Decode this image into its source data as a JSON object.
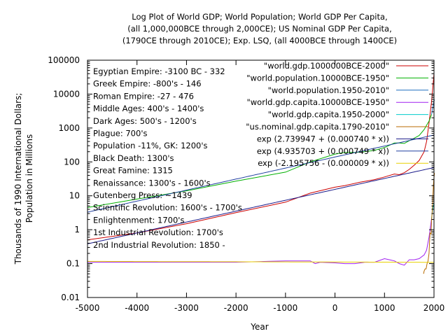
{
  "chart_data": {
    "type": "line",
    "title_lines": [
      "Log Plot of World GDP; World Population; World GDP Per Capita,",
      "(all 1,000,000BCE through 2,000CE); US Nominal GDP Per Capita,",
      "(1790CE through 2010CE); Exp. LSQ, (all 4000BCE through 1400CE)"
    ],
    "xlabel": "Year",
    "ylabel_lines": [
      "Thousands of 1990 International Dollars;",
      "Population in Millions"
    ],
    "xlim": [
      -5000,
      2000
    ],
    "ylim": [
      0.01,
      100000
    ],
    "yscale": "log",
    "xticks": [
      -5000,
      -4000,
      -3000,
      -2000,
      -1000,
      0,
      1000,
      2000
    ],
    "yticks": [
      {
        "value": 0.01,
        "label": "0.01"
      },
      {
        "value": 0.1,
        "label": "0.1"
      },
      {
        "value": 1,
        "label": "1"
      },
      {
        "value": 10,
        "label": "10"
      },
      {
        "value": 100,
        "label": "100"
      },
      {
        "value": 1000,
        "label": "1000"
      },
      {
        "value": 10000,
        "label": "10000"
      },
      {
        "value": 100000,
        "label": "100000"
      }
    ],
    "grid": false,
    "legend_position": "top-right",
    "annotations": [
      "Egyptian Empire: -3100 BC - 332",
      "Greek Empire: -800's - 146",
      "Roman Empire: -27 - 476",
      "Middle Ages: 400's - 1400's",
      "Dark Ages: 500's - 1200's",
      "Plague: 700's",
      "Population -11%, GK: 1200's",
      "Black Death: 1300's",
      "Great Famine: 1315",
      "Renaissance: 1300's - 1600's",
      "Gutenberg Press: ~1439",
      "Scientific Revolution: 1600's - 1700's",
      "Enlightenment: 1700's",
      "1st Industrial Revolution: 1700's",
      "2nd Industrial Revolution: 1850 -"
    ],
    "series": [
      {
        "name": "\"world.gdp.1000000BCE-2000\"",
        "color": "#cc0000",
        "x": [
          -5000,
          -4000,
          -3000,
          -2000,
          -1000,
          -500,
          0,
          200,
          500,
          800,
          1000,
          1200,
          1300,
          1400,
          1500,
          1600,
          1700,
          1800,
          1850,
          1900,
          1950,
          2000
        ],
        "y": [
          0.5,
          0.8,
          1.5,
          3.2,
          6.5,
          12,
          18,
          20,
          25,
          30,
          36,
          44,
          42,
          48,
          60,
          80,
          110,
          200,
          400,
          1400,
          6000,
          40000
        ]
      },
      {
        "name": "\"world.population.10000BCE-1950\"",
        "color": "#00b000",
        "x": [
          -5000,
          -4000,
          -3000,
          -2000,
          -1000,
          -500,
          0,
          200,
          400,
          600,
          800,
          1000,
          1200,
          1300,
          1400,
          1500,
          1600,
          1700,
          1800,
          1850,
          1900,
          1950
        ],
        "y": [
          4.5,
          8,
          14,
          27,
          50,
          100,
          170,
          190,
          190,
          200,
          220,
          265,
          360,
          360,
          350,
          420,
          500,
          600,
          900,
          1200,
          1600,
          2500
        ]
      },
      {
        "name": "\"world.population.1950-2010\"",
        "color": "#1f6fbf",
        "x": [
          1950,
          1960,
          1970,
          1980,
          1990,
          2000,
          2010
        ],
        "y": [
          2500,
          3000,
          3700,
          4400,
          5300,
          6100,
          6900
        ]
      },
      {
        "name": "\"world.gdp.capita.10000BCE-1950\"",
        "color": "#a020f0",
        "x": [
          -5000,
          -3000,
          -2000,
          -1000,
          -500,
          -400,
          -300,
          0,
          200,
          400,
          600,
          800,
          1000,
          1100,
          1200,
          1300,
          1400,
          1500,
          1600,
          1700,
          1800,
          1850,
          1900,
          1950
        ],
        "y": [
          0.11,
          0.11,
          0.11,
          0.12,
          0.12,
          0.1,
          0.11,
          0.105,
          0.1,
          0.1,
          0.11,
          0.11,
          0.14,
          0.13,
          0.12,
          0.1,
          0.09,
          0.13,
          0.13,
          0.14,
          0.18,
          0.25,
          0.6,
          2.1
        ]
      },
      {
        "name": "\"world.gdp.capita.1950-2000\"",
        "color": "#00cccc",
        "x": [
          1950,
          1960,
          1970,
          1980,
          1990,
          2000
        ],
        "y": [
          2.1,
          2.8,
          3.7,
          4.5,
          5.2,
          6.1
        ]
      },
      {
        "name": "\"us.nominal.gdp.capita.1790-2010\"",
        "color": "#b86b00",
        "x": [
          1790,
          1800,
          1820,
          1840,
          1860,
          1880,
          1900,
          1920,
          1940,
          1950,
          1960,
          1970,
          1980,
          1990,
          2000,
          2010
        ],
        "y": [
          0.05,
          0.06,
          0.07,
          0.07,
          0.1,
          0.12,
          0.2,
          0.8,
          0.75,
          1.9,
          2.9,
          5,
          12,
          23,
          35,
          47
        ]
      },
      {
        "name": "exp (2.739947 + (0.000740 * x))",
        "color": "#1a1a8a",
        "fn": {
          "a": 2.739947,
          "b": 0.00074
        }
      },
      {
        "name": "exp (4.935703 + (0.000749 * x))",
        "color": "#2040a0",
        "fn": {
          "a": 4.935703,
          "b": 0.000749
        }
      },
      {
        "name": "exp (-2.195756 - (0.000009 * x))",
        "color": "#e8d000",
        "fn": {
          "a": -2.195756,
          "b": -9e-06
        }
      }
    ]
  }
}
